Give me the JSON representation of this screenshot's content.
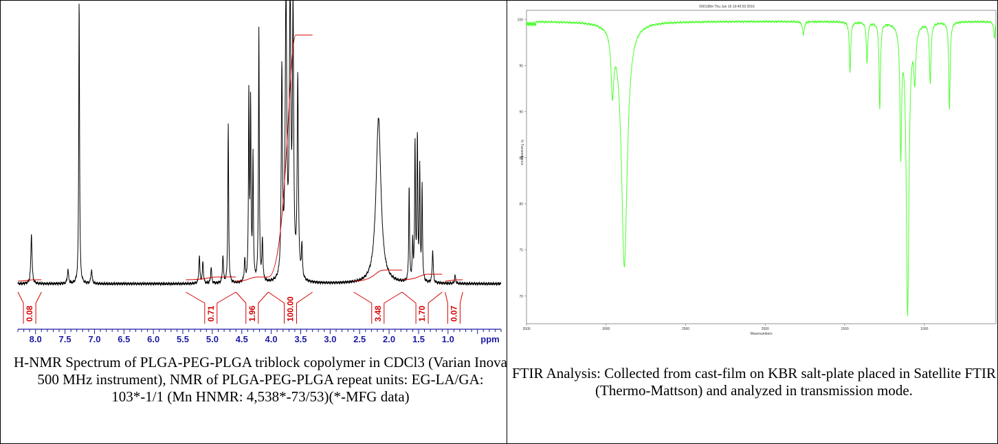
{
  "chart_data": [
    {
      "type": "line",
      "title": "",
      "xlabel": "",
      "ylabel": "",
      "x_unit_label": "ppm",
      "xlim": [
        8.3,
        0.1
      ],
      "x_ticks": [
        "8.0",
        "7.5",
        "7.0",
        "6.5",
        "6.0",
        "5.5",
        "5.0",
        "4.5",
        "4.0",
        "3.5",
        "3.0",
        "2.5",
        "2.0",
        "1.5",
        "1.0"
      ],
      "ylim": [
        0,
        100
      ],
      "grid": false,
      "series": [
        {
          "color": "#000000",
          "peaks": [
            {
              "ppm": 8.07,
              "height": 18,
              "width": 0.012
            },
            {
              "ppm": 7.45,
              "height": 5,
              "width": 0.012
            },
            {
              "ppm": 7.26,
              "height": 104,
              "width": 0.008
            },
            {
              "ppm": 7.05,
              "height": 5,
              "width": 0.012
            },
            {
              "ppm": 5.22,
              "height": 10,
              "width": 0.01
            },
            {
              "ppm": 5.16,
              "height": 8,
              "width": 0.01
            },
            {
              "ppm": 5.02,
              "height": 6,
              "width": 0.01
            },
            {
              "ppm": 4.82,
              "height": 10,
              "width": 0.01
            },
            {
              "ppm": 4.73,
              "height": 58,
              "width": 0.008
            },
            {
              "ppm": 4.45,
              "height": 8,
              "width": 0.01
            },
            {
              "ppm": 4.38,
              "height": 68,
              "width": 0.008
            },
            {
              "ppm": 4.35,
              "height": 63,
              "width": 0.008
            },
            {
              "ppm": 4.31,
              "height": 45,
              "width": 0.008
            },
            {
              "ppm": 4.21,
              "height": 92,
              "width": 0.008
            },
            {
              "ppm": 4.15,
              "height": 15,
              "width": 0.01
            },
            {
              "ppm": 3.82,
              "height": 75,
              "width": 0.012
            },
            {
              "ppm": 3.75,
              "height": 104,
              "width": 0.015
            },
            {
              "ppm": 3.68,
              "height": 104,
              "width": 0.015
            },
            {
              "ppm": 3.63,
              "height": 95,
              "width": 0.012
            },
            {
              "ppm": 3.55,
              "height": 72,
              "width": 0.012
            },
            {
              "ppm": 3.48,
              "height": 12,
              "width": 0.01
            },
            {
              "ppm": 2.18,
              "height": 60,
              "width": 0.05
            },
            {
              "ppm": 1.66,
              "height": 35,
              "width": 0.008
            },
            {
              "ppm": 1.6,
              "height": 14,
              "width": 0.008
            },
            {
              "ppm": 1.56,
              "height": 50,
              "width": 0.008
            },
            {
              "ppm": 1.52,
              "height": 52,
              "width": 0.008
            },
            {
              "ppm": 1.48,
              "height": 40,
              "width": 0.008
            },
            {
              "ppm": 1.44,
              "height": 34,
              "width": 0.008
            },
            {
              "ppm": 1.26,
              "height": 12,
              "width": 0.01
            },
            {
              "ppm": 0.88,
              "height": 3,
              "width": 0.01
            }
          ]
        }
      ],
      "integrals": [
        {
          "label": "0.08",
          "from": 8.3,
          "to": 7.9
        },
        {
          "label": "0.71",
          "from": 5.45,
          "to": 4.6
        },
        {
          "label": "1.96",
          "from": 4.6,
          "to": 4.05
        },
        {
          "label": "100.00",
          "from": 4.05,
          "to": 3.3
        },
        {
          "label": "3.48",
          "from": 2.6,
          "to": 1.78
        },
        {
          "label": "1.70",
          "from": 1.78,
          "to": 1.1
        },
        {
          "label": "0.07",
          "from": 1.05,
          "to": 0.75
        }
      ]
    },
    {
      "type": "line",
      "title": "",
      "xlabel": "Wavenumbers",
      "ylabel": "% Transmittance",
      "header_text": "000138m  Thu Jun 16 10:40:53 2016",
      "xlim": [
        3500,
        550
      ],
      "x_ticks": [
        "3500",
        "3000",
        "2500",
        "2000",
        "1500",
        "1000"
      ],
      "ylim": [
        67,
        101
      ],
      "y_ticks": [
        "100",
        "95",
        "90",
        "85",
        "80",
        "75",
        "70"
      ],
      "grid": false,
      "series": [
        {
          "color": "#4cff2e",
          "baseline": 99.8,
          "bands": [
            {
              "center": 2960,
              "depth": 6.5,
              "width": 10
            },
            {
              "center": 2885,
              "depth": 26.5,
              "width": 22
            },
            {
              "center": 1760,
              "depth": 1.5,
              "width": 6
            },
            {
              "center": 1467,
              "depth": 5.5,
              "width": 5
            },
            {
              "center": 1360,
              "depth": 4.5,
              "width": 5
            },
            {
              "center": 1280,
              "depth": 9.5,
              "width": 5
            },
            {
              "center": 1148,
              "depth": 13.5,
              "width": 6
            },
            {
              "center": 1105,
              "depth": 31.5,
              "width": 10
            },
            {
              "center": 1060,
              "depth": 5.5,
              "width": 8
            },
            {
              "center": 963,
              "depth": 6.5,
              "width": 6
            },
            {
              "center": 842,
              "depth": 9.5,
              "width": 5
            },
            {
              "center": 560,
              "depth": 1.8,
              "width": 5
            }
          ]
        }
      ]
    }
  ],
  "nmr_caption": "H-NMR Spectrum of PLGA-PEG-PLGA triblock copolymer in CDCl3 (Varian Inova 500 MHz instrument), NMR of PLGA-PEG-PLGA repeat units: EG-LA/GA: 103*-1/1 (Mn HNMR: 4,538*-73/53)(*-MFG data)",
  "ftir_caption": "FTIR Analysis: Collected from cast-film on KBR salt-plate placed in Satellite FTIR (Thermo-Mattson) and analyzed in transmission mode.",
  "colors": {
    "nmr_trace": "#000000",
    "integral": "#d40000",
    "ppm_axis": "#1a1aa0",
    "ftir_trace": "#4cff2e"
  }
}
